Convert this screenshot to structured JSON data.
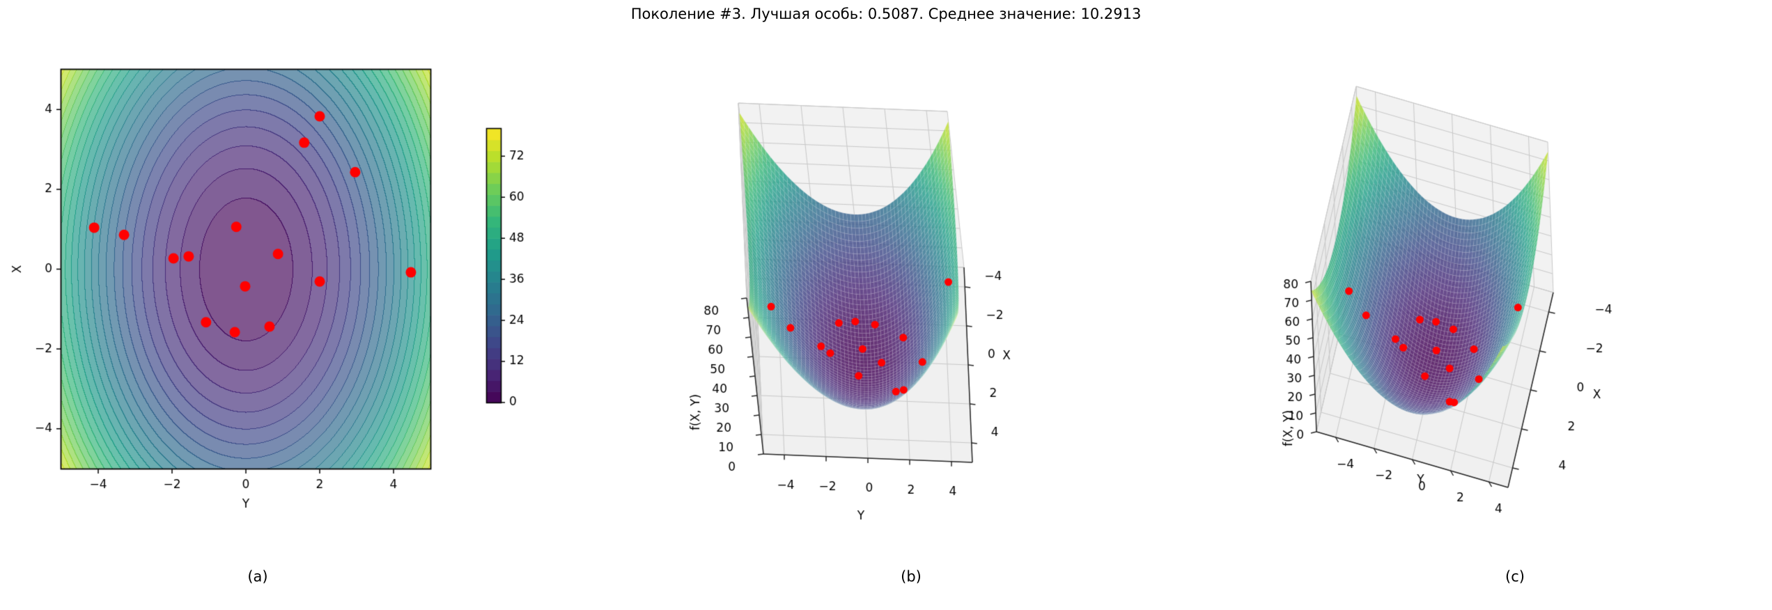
{
  "title": "Поколение #3. Лучшая особь: 0.5087. Среднее значение: 10.2913",
  "stats": {
    "generation_label": "Поколение",
    "generation": 3,
    "best_label": "Лучшая особь",
    "best_value": "0.5087",
    "mean_label": "Среднее значение",
    "mean_value": "10.2913"
  },
  "captions": {
    "a": "(a)",
    "b": "(b)",
    "c": "(c)"
  },
  "colors": {
    "point_color": "#ff0000",
    "colormap": "viridis",
    "pane_wall_x": "#f2f2f2",
    "pane_wall_y": "#eaeaea",
    "pane_floor": "#f0f0f0",
    "grid_line": "#c8c8c8",
    "axis_line": "#262626"
  },
  "chart_data": {
    "figure_kind": "genetic-algorithm fitness landscape, one generation",
    "function": "f(X, Y) = X^2 + 2*Y^2",
    "function_coeffs": {
      "x2": 1,
      "y2": 2
    },
    "generation": 3,
    "best_fitness": 0.5087,
    "mean_fitness": 10.2913,
    "population_points_yx": [
      [
        2.0,
        3.83
      ],
      [
        1.58,
        3.17
      ],
      [
        2.96,
        2.43
      ],
      [
        -4.11,
        1.04
      ],
      [
        -3.3,
        0.86
      ],
      [
        -0.26,
        1.06
      ],
      [
        -1.96,
        0.27
      ],
      [
        -1.55,
        0.32
      ],
      [
        0.87,
        0.38
      ],
      [
        4.47,
        -0.08
      ],
      [
        2.0,
        -0.31
      ],
      [
        -0.02,
        -0.43
      ],
      [
        -1.08,
        -1.33
      ],
      [
        -0.3,
        -1.58
      ],
      [
        0.64,
        -1.44
      ]
    ],
    "plots": [
      {
        "id": "a",
        "type": "contour",
        "xlabel": "Y",
        "ylabel": "X",
        "xlim": [
          -5,
          5
        ],
        "ylim": [
          -5,
          5
        ],
        "xtick_values": [
          -4,
          -2,
          0,
          2,
          4
        ],
        "xtick_labels": [
          "−4",
          "−2",
          "0",
          "2",
          "4"
        ],
        "ytick_values": [
          -4,
          -2,
          0,
          2,
          4
        ],
        "ytick_labels": [
          "−4",
          "−2",
          "0",
          "2",
          "4"
        ],
        "levels": {
          "min": 0,
          "max": 80,
          "bands": 25
        },
        "fill_alpha": 0.68,
        "colorbar": {
          "vmin": 0,
          "vmax": 80,
          "tick_values": [
            0,
            12,
            24,
            36,
            48,
            60,
            72
          ],
          "tick_labels": [
            "0",
            "12",
            "24",
            "36",
            "48",
            "60",
            "72"
          ]
        }
      },
      {
        "id": "b",
        "type": "surface3d",
        "view": "front-elevated",
        "axis_y_label": "Y",
        "axis_x_label": "X",
        "axis_z_label": "f(X, Y)",
        "ytick_values": [
          -4,
          -2,
          0,
          2,
          4
        ],
        "ytick_labels": [
          "−4",
          "−2",
          "0",
          "2",
          "4"
        ],
        "xtick_values": [
          -4,
          -2,
          0,
          2,
          4
        ],
        "xtick_labels": [
          "−4",
          "−2",
          "0",
          "2",
          "4"
        ],
        "ztick_values": [
          0,
          10,
          20,
          30,
          40,
          50,
          60,
          70,
          80
        ],
        "ztick_labels": [
          "0",
          "10",
          "20",
          "30",
          "40",
          "50",
          "60",
          "70",
          "80"
        ],
        "zlim": [
          0,
          80
        ],
        "surface_alpha": 0.8
      },
      {
        "id": "c",
        "type": "surface3d",
        "view": "oblique",
        "axis_y_label": "Y",
        "axis_x_label": "X",
        "axis_z_label": "f(X, Y)",
        "ytick_values": [
          -4,
          -2,
          0,
          2,
          4
        ],
        "ytick_labels": [
          "−4",
          "−2",
          "0",
          "2",
          "4"
        ],
        "xtick_values": [
          -4,
          -2,
          0,
          2,
          4
        ],
        "xtick_labels": [
          "−4",
          "−2",
          "0",
          "2",
          "4"
        ],
        "ztick_values": [
          0,
          10,
          20,
          30,
          40,
          50,
          60,
          70,
          80
        ],
        "ztick_labels": [
          "0",
          "10",
          "20",
          "30",
          "40",
          "50",
          "60",
          "70",
          "80"
        ],
        "zlim": [
          0,
          80
        ],
        "surface_alpha": 0.8
      }
    ]
  }
}
